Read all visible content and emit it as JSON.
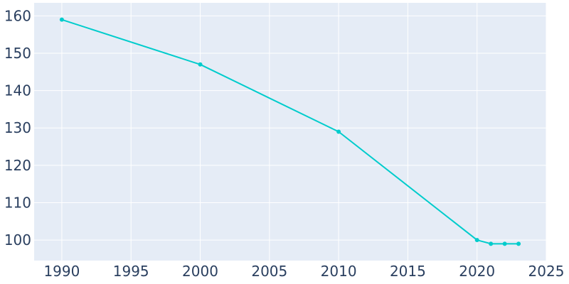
{
  "chart_data": {
    "type": "line",
    "title": "",
    "xlabel": "",
    "ylabel": "",
    "x": [
      1990,
      2000,
      2010,
      2020,
      2021,
      2022,
      2023
    ],
    "series": [
      {
        "values": [
          159,
          147,
          129,
          100,
          99,
          99,
          99
        ]
      }
    ],
    "xlim": [
      1988,
      2025
    ],
    "ylim": [
      94.5,
      163.5
    ],
    "xticks": [
      1990,
      1995,
      2000,
      2005,
      2010,
      2015,
      2020,
      2025
    ],
    "yticks": [
      100,
      110,
      120,
      130,
      140,
      150,
      160
    ],
    "grid": true,
    "legend": "none",
    "colors": {
      "line": "#00cccc",
      "plot_bg": "#e5ecf6",
      "grid": "#ffffff",
      "text": "#2a3f5f"
    }
  }
}
